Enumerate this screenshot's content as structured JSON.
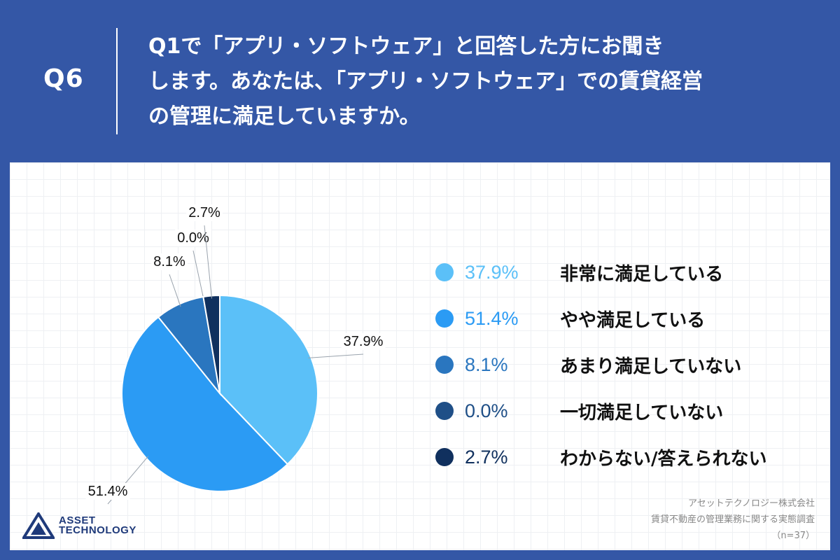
{
  "header": {
    "question_number": "Q6",
    "question_lines": [
      "Q1で「アプリ・ソフトウェア」と回答した方にお聞き",
      "します。あなたは、「アプリ・ソフトウェア」での賃貸経営",
      "の管理に満足していますか。"
    ]
  },
  "chart_data": {
    "type": "pie",
    "unit": "%",
    "categories": [
      "非常に満足している",
      "やや満足している",
      "あまり満足していない",
      "一切満足していない",
      "わからない/答えられない"
    ],
    "values": [
      37.9,
      51.4,
      8.1,
      0.0,
      2.7
    ],
    "labels": [
      "37.9%",
      "51.4%",
      "8.1%",
      "0.0%",
      "2.7%"
    ],
    "colors": [
      "#5bc0f8",
      "#2b9bf4",
      "#2a76bf",
      "#1f4f87",
      "#10305e"
    ],
    "legend_placement": "right"
  },
  "legend_text_colors": [
    "#5bc0f8",
    "#2b9bf4",
    "#2a76bf",
    "#1f4f87",
    "#10305e"
  ],
  "brand": {
    "line1": "ASSET",
    "line2": "TECHNOLOGY",
    "color": "#1f3a7a"
  },
  "source": {
    "company": "アセットテクノロジー株式会社",
    "survey": "賃貸不動産の管理業務に関する実態調査",
    "sample": "（n=37）"
  }
}
